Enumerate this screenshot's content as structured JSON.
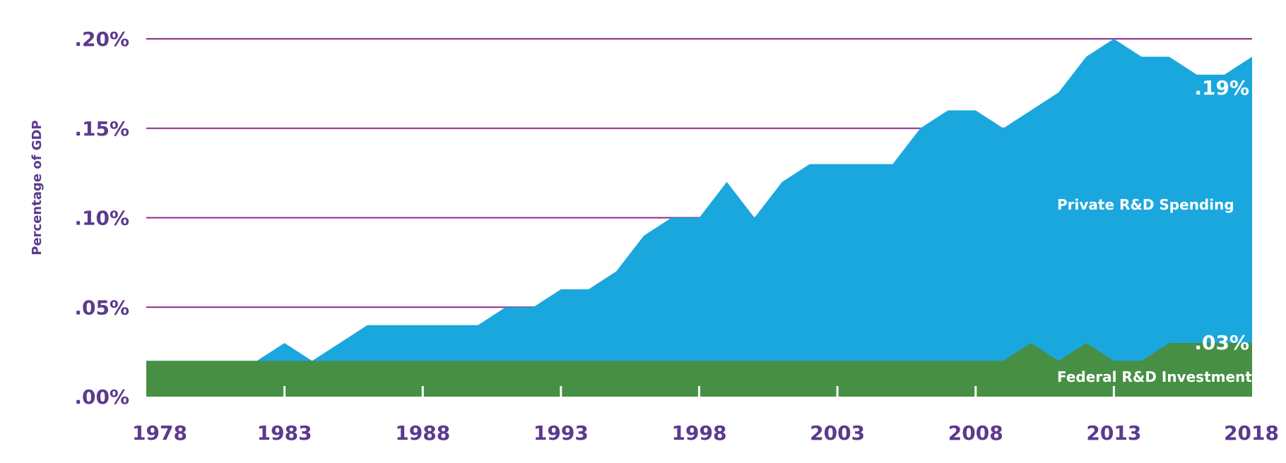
{
  "chart_data": {
    "type": "area",
    "ylabel": "Percentage of GDP",
    "ylim": [
      0,
      0.2
    ],
    "y_ticks": [
      ".00%",
      ".05%",
      ".10%",
      ".15%",
      ".20%"
    ],
    "x_ticks": [
      "1978",
      "1983",
      "1988",
      "1993",
      "1998",
      "2003",
      "2008",
      "2013",
      "2018"
    ],
    "grid": "horizontal",
    "stacked": false,
    "x": [
      1978,
      1979,
      1980,
      1981,
      1982,
      1983,
      1984,
      1985,
      1986,
      1987,
      1988,
      1989,
      1990,
      1991,
      1992,
      1993,
      1994,
      1995,
      1996,
      1997,
      1998,
      1999,
      2000,
      2001,
      2002,
      2003,
      2004,
      2005,
      2006,
      2007,
      2008,
      2009,
      2010,
      2011,
      2012,
      2013,
      2014,
      2015,
      2016,
      2017,
      2018
    ],
    "series": [
      {
        "name": "Private R&D Spending",
        "color": "#1aa7de",
        "end_label": ".19%",
        "values": [
          0.02,
          0.02,
          0.02,
          0.02,
          0.02,
          0.03,
          0.02,
          0.03,
          0.04,
          0.04,
          0.04,
          0.04,
          0.04,
          0.05,
          0.05,
          0.06,
          0.06,
          0.07,
          0.09,
          0.1,
          0.1,
          0.12,
          0.1,
          0.12,
          0.13,
          0.13,
          0.13,
          0.13,
          0.15,
          0.16,
          0.16,
          0.15,
          0.16,
          0.17,
          0.19,
          0.2,
          0.19,
          0.19,
          0.18,
          0.18,
          0.19
        ]
      },
      {
        "name": "Federal R&D Investments",
        "color": "#478f44",
        "end_label": ".03%",
        "values": [
          0.02,
          0.02,
          0.02,
          0.02,
          0.02,
          0.02,
          0.02,
          0.02,
          0.02,
          0.02,
          0.02,
          0.02,
          0.02,
          0.02,
          0.02,
          0.02,
          0.02,
          0.02,
          0.02,
          0.02,
          0.02,
          0.02,
          0.02,
          0.02,
          0.02,
          0.02,
          0.02,
          0.02,
          0.02,
          0.02,
          0.02,
          0.02,
          0.03,
          0.02,
          0.03,
          0.02,
          0.02,
          0.03,
          0.03,
          0.03,
          0.03
        ]
      }
    ],
    "colors": {
      "text": "#5b3a8e",
      "gridline": "#8b2a8f",
      "white_label": "#ffffff"
    }
  }
}
